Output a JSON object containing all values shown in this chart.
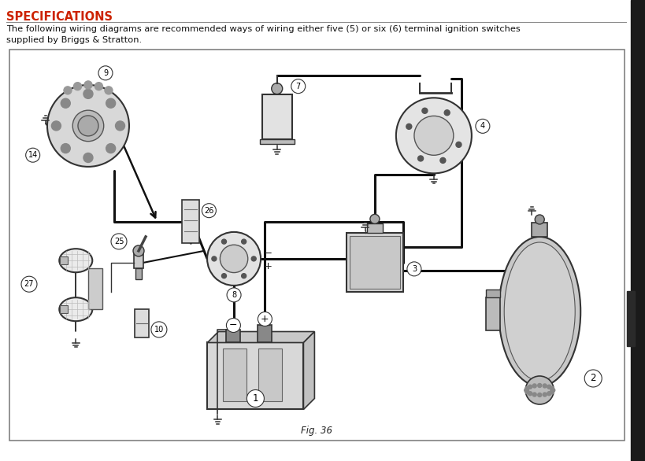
{
  "title": "SPECIFICATIONS",
  "body_line1": "The following wiring diagrams are recommended ways of wiring either five (5) or six (6) terminal ignition switches",
  "body_line2": "supplied by Briggs & Stratton.",
  "fig_label": "Fig. 36",
  "bg_color": "#ffffff",
  "title_color": "#cc2200",
  "text_color": "#111111",
  "wire_color": "#111111",
  "border_color": "#666666",
  "sidebar_color": "#1a1a1a",
  "comp_fill": "#d8d8d8",
  "comp_edge": "#333333"
}
